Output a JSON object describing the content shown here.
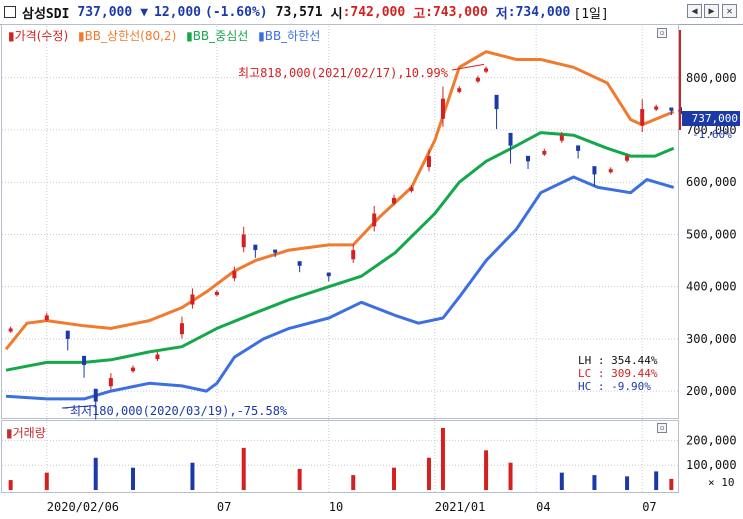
{
  "header": {
    "name": "삼성SDI",
    "price": "737,000",
    "change_arrow": "▼",
    "change": "12,000",
    "change_pct": "(-1.60%)",
    "volume": "73,571",
    "open_label": "시",
    "open": ":742,000",
    "high_label": "고",
    "high": ":743,000",
    "low_label": "저",
    "low": ":734,000",
    "period": "[1일]",
    "buttons": [
      "◀",
      "▶",
      "✕"
    ]
  },
  "legend": {
    "price": "가격(수정)",
    "upper": "BB_상한선(80,2)",
    "middle": "BB_중심선",
    "lower": "BB_하한선"
  },
  "volume_legend": "거래량",
  "annotations": {
    "high": "최고818,000(2021/02/17),10.99%",
    "low": "최저180,000(2020/03/19),-75.58%"
  },
  "stats": [
    {
      "label": "LH",
      "value": ": 354.44%",
      "color": "#111111"
    },
    {
      "label": "LC",
      "value": ": 309.44%",
      "color": "#d42020"
    },
    {
      "label": "HC",
      "value": ":  -9.90%",
      "color": "#1b3aa8"
    }
  ],
  "price_badge": "737,000",
  "price_badge_pct": "-1.60%",
  "colors": {
    "up": "#d42020",
    "down": "#1b3aa8",
    "upper": "#f07a2e",
    "middle": "#14a84a",
    "lower": "#3c6fe0",
    "grid": "#c5cad6"
  },
  "chart_data": [
    {
      "type": "candlestick",
      "title": "",
      "yticks": [
        200000,
        300000,
        400000,
        500000,
        600000,
        700000,
        800000
      ],
      "ytick_labels": [
        "200,000",
        "300,000",
        "400,000",
        "500,000",
        "600,000",
        "700,000",
        "800,000"
      ],
      "ylim": [
        160000,
        880000
      ],
      "xticks": [
        {
          "label": "2020/02/06",
          "date": "2020-02-06"
        },
        {
          "label": "07",
          "date": "2020-07-01"
        },
        {
          "label": "10",
          "date": "2020-10-05"
        },
        {
          "label": "2021/01",
          "date": "2021-01-04"
        },
        {
          "label": "04",
          "date": "2021-04-01"
        },
        {
          "label": "07",
          "date": "2021-07-01"
        }
      ],
      "xlim": [
        "2020-01-02",
        "2021-07-30"
      ],
      "series": [
        {
          "name": "가격(수정)",
          "type": "candle",
          "points": [
            {
              "x": "2020-01-06",
              "y": 320000
            },
            {
              "x": "2020-02-06",
              "y": 345000
            },
            {
              "x": "2020-02-24",
              "y": 300000
            },
            {
              "x": "2020-03-09",
              "y": 250000
            },
            {
              "x": "2020-03-19",
              "y": 180000
            },
            {
              "x": "2020-04-01",
              "y": 225000
            },
            {
              "x": "2020-04-20",
              "y": 245000
            },
            {
              "x": "2020-05-11",
              "y": 270000
            },
            {
              "x": "2020-06-01",
              "y": 330000
            },
            {
              "x": "2020-06-10",
              "y": 385000
            },
            {
              "x": "2020-07-01",
              "y": 390000
            },
            {
              "x": "2020-07-16",
              "y": 430000
            },
            {
              "x": "2020-07-24",
              "y": 500000
            },
            {
              "x": "2020-08-03",
              "y": 470000
            },
            {
              "x": "2020-08-20",
              "y": 465000
            },
            {
              "x": "2020-09-10",
              "y": 440000
            },
            {
              "x": "2020-10-05",
              "y": 420000
            },
            {
              "x": "2020-10-26",
              "y": 470000
            },
            {
              "x": "2020-11-13",
              "y": 540000
            },
            {
              "x": "2020-11-30",
              "y": 570000
            },
            {
              "x": "2020-12-15",
              "y": 590000
            },
            {
              "x": "2020-12-30",
              "y": 650000
            },
            {
              "x": "2021-01-11",
              "y": 760000
            },
            {
              "x": "2021-01-25",
              "y": 780000
            },
            {
              "x": "2021-02-10",
              "y": 800000
            },
            {
              "x": "2021-02-17",
              "y": 818000
            },
            {
              "x": "2021-02-26",
              "y": 740000
            },
            {
              "x": "2021-03-10",
              "y": 670000
            },
            {
              "x": "2021-03-25",
              "y": 640000
            },
            {
              "x": "2021-04-08",
              "y": 660000
            },
            {
              "x": "2021-04-23",
              "y": 690000
            },
            {
              "x": "2021-05-07",
              "y": 660000
            },
            {
              "x": "2021-05-21",
              "y": 615000
            },
            {
              "x": "2021-06-04",
              "y": 625000
            },
            {
              "x": "2021-06-18",
              "y": 650000
            },
            {
              "x": "2021-07-01",
              "y": 740000
            },
            {
              "x": "2021-07-13",
              "y": 745000
            },
            {
              "x": "2021-07-26",
              "y": 737000
            }
          ]
        },
        {
          "name": "BB_상한선(80,2)",
          "points": [
            {
              "x": "2020-01-02",
              "y": 280000
            },
            {
              "x": "2020-01-20",
              "y": 330000
            },
            {
              "x": "2020-02-06",
              "y": 335000
            },
            {
              "x": "2020-03-09",
              "y": 325000
            },
            {
              "x": "2020-04-01",
              "y": 320000
            },
            {
              "x": "2020-05-04",
              "y": 335000
            },
            {
              "x": "2020-06-01",
              "y": 360000
            },
            {
              "x": "2020-06-22",
              "y": 390000
            },
            {
              "x": "2020-07-16",
              "y": 430000
            },
            {
              "x": "2020-08-03",
              "y": 450000
            },
            {
              "x": "2020-09-01",
              "y": 470000
            },
            {
              "x": "2020-10-05",
              "y": 480000
            },
            {
              "x": "2020-10-26",
              "y": 480000
            },
            {
              "x": "2020-11-16",
              "y": 530000
            },
            {
              "x": "2020-12-15",
              "y": 590000
            },
            {
              "x": "2021-01-04",
              "y": 680000
            },
            {
              "x": "2021-01-25",
              "y": 820000
            },
            {
              "x": "2021-02-17",
              "y": 850000
            },
            {
              "x": "2021-03-15",
              "y": 835000
            },
            {
              "x": "2021-04-05",
              "y": 835000
            },
            {
              "x": "2021-05-03",
              "y": 820000
            },
            {
              "x": "2021-06-01",
              "y": 790000
            },
            {
              "x": "2021-06-21",
              "y": 720000
            },
            {
              "x": "2021-07-01",
              "y": 710000
            },
            {
              "x": "2021-07-28",
              "y": 735000
            }
          ]
        },
        {
          "name": "BB_중심선",
          "points": [
            {
              "x": "2020-01-02",
              "y": 240000
            },
            {
              "x": "2020-02-06",
              "y": 255000
            },
            {
              "x": "2020-03-09",
              "y": 255000
            },
            {
              "x": "2020-04-01",
              "y": 260000
            },
            {
              "x": "2020-05-04",
              "y": 275000
            },
            {
              "x": "2020-06-01",
              "y": 285000
            },
            {
              "x": "2020-07-01",
              "y": 320000
            },
            {
              "x": "2020-08-03",
              "y": 350000
            },
            {
              "x": "2020-09-01",
              "y": 375000
            },
            {
              "x": "2020-10-05",
              "y": 400000
            },
            {
              "x": "2020-11-02",
              "y": 420000
            },
            {
              "x": "2020-12-01",
              "y": 465000
            },
            {
              "x": "2021-01-04",
              "y": 540000
            },
            {
              "x": "2021-01-25",
              "y": 600000
            },
            {
              "x": "2021-02-17",
              "y": 640000
            },
            {
              "x": "2021-03-15",
              "y": 670000
            },
            {
              "x": "2021-04-05",
              "y": 695000
            },
            {
              "x": "2021-05-03",
              "y": 690000
            },
            {
              "x": "2021-06-01",
              "y": 665000
            },
            {
              "x": "2021-06-21",
              "y": 650000
            },
            {
              "x": "2021-07-12",
              "y": 650000
            },
            {
              "x": "2021-07-28",
              "y": 665000
            }
          ]
        },
        {
          "name": "BB_하한선",
          "points": [
            {
              "x": "2020-01-02",
              "y": 190000
            },
            {
              "x": "2020-02-06",
              "y": 185000
            },
            {
              "x": "2020-03-09",
              "y": 185000
            },
            {
              "x": "2020-04-01",
              "y": 200000
            },
            {
              "x": "2020-05-04",
              "y": 215000
            },
            {
              "x": "2020-06-01",
              "y": 210000
            },
            {
              "x": "2020-06-22",
              "y": 200000
            },
            {
              "x": "2020-07-01",
              "y": 215000
            },
            {
              "x": "2020-07-16",
              "y": 265000
            },
            {
              "x": "2020-08-10",
              "y": 300000
            },
            {
              "x": "2020-09-01",
              "y": 320000
            },
            {
              "x": "2020-10-05",
              "y": 340000
            },
            {
              "x": "2020-11-02",
              "y": 370000
            },
            {
              "x": "2020-12-01",
              "y": 345000
            },
            {
              "x": "2020-12-21",
              "y": 330000
            },
            {
              "x": "2021-01-11",
              "y": 340000
            },
            {
              "x": "2021-01-25",
              "y": 380000
            },
            {
              "x": "2021-02-17",
              "y": 450000
            },
            {
              "x": "2021-03-15",
              "y": 510000
            },
            {
              "x": "2021-04-05",
              "y": 580000
            },
            {
              "x": "2021-05-03",
              "y": 610000
            },
            {
              "x": "2021-05-24",
              "y": 590000
            },
            {
              "x": "2021-06-21",
              "y": 580000
            },
            {
              "x": "2021-07-05",
              "y": 605000
            },
            {
              "x": "2021-07-28",
              "y": 590000
            }
          ]
        }
      ]
    },
    {
      "type": "bar",
      "title": "",
      "yticks": [
        100000,
        200000
      ],
      "ytick_labels": [
        "100,000",
        "200,000"
      ],
      "unit_label": "× 10",
      "ylim": [
        0,
        250000
      ],
      "series": [
        {
          "name": "거래량",
          "points": [
            {
              "x": "2020-01-06",
              "y": 40000
            },
            {
              "x": "2020-02-06",
              "y": 70000
            },
            {
              "x": "2020-03-19",
              "y": 130000
            },
            {
              "x": "2020-04-20",
              "y": 90000
            },
            {
              "x": "2020-06-10",
              "y": 110000
            },
            {
              "x": "2020-07-24",
              "y": 170000
            },
            {
              "x": "2020-09-10",
              "y": 85000
            },
            {
              "x": "2020-10-26",
              "y": 60000
            },
            {
              "x": "2020-11-30",
              "y": 90000
            },
            {
              "x": "2020-12-30",
              "y": 130000
            },
            {
              "x": "2021-01-11",
              "y": 250000
            },
            {
              "x": "2021-02-17",
              "y": 160000
            },
            {
              "x": "2021-03-10",
              "y": 110000
            },
            {
              "x": "2021-04-23",
              "y": 70000
            },
            {
              "x": "2021-05-21",
              "y": 60000
            },
            {
              "x": "2021-06-18",
              "y": 55000
            },
            {
              "x": "2021-07-13",
              "y": 75000
            },
            {
              "x": "2021-07-26",
              "y": 45000
            }
          ]
        }
      ]
    }
  ]
}
